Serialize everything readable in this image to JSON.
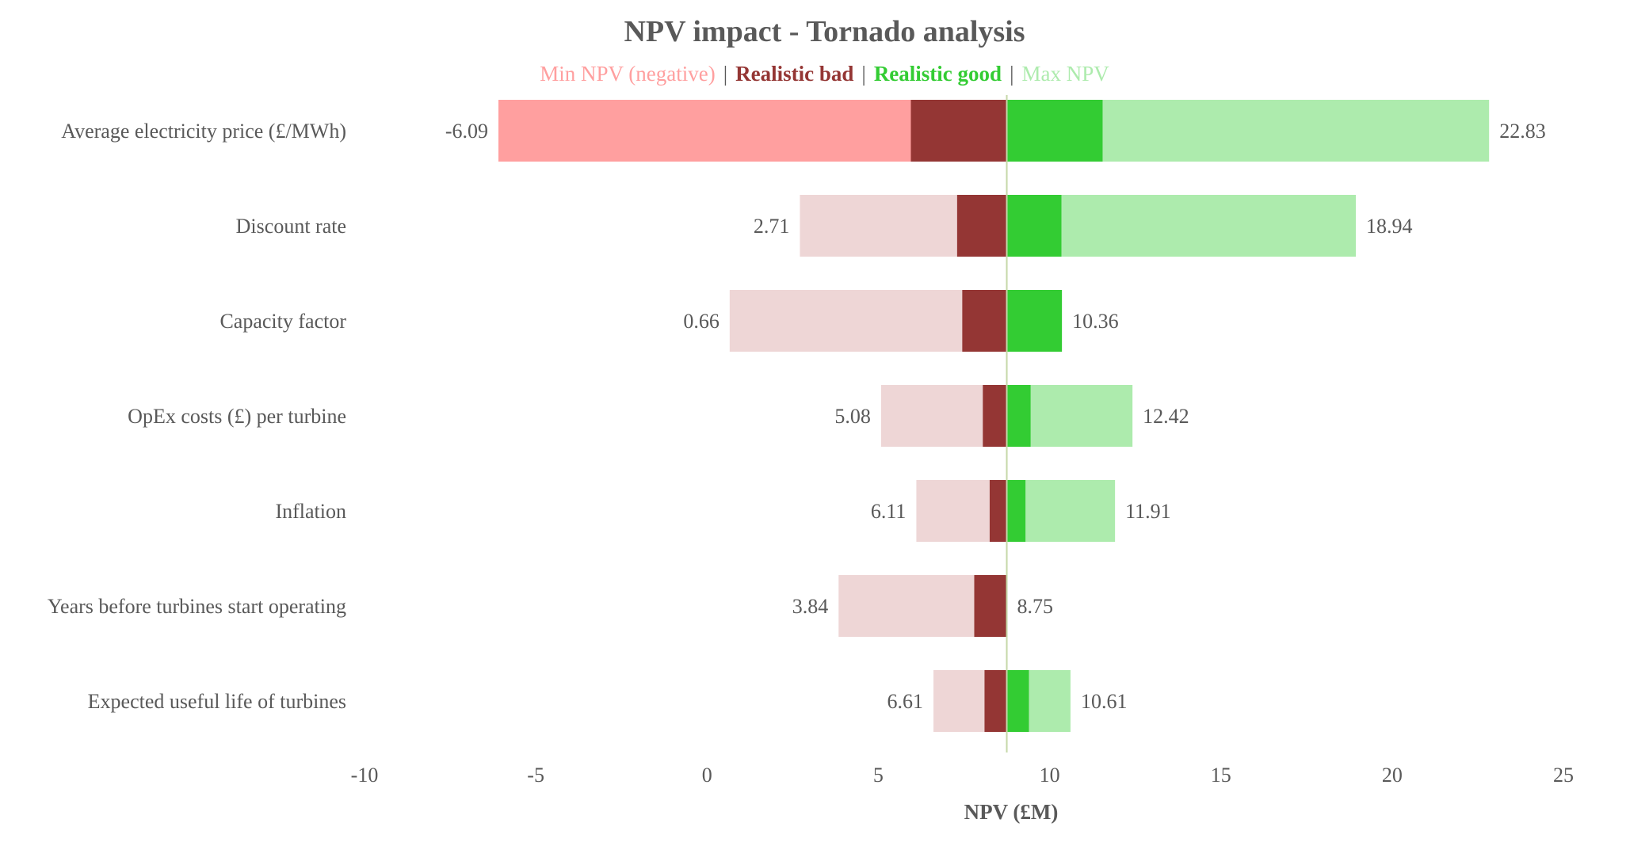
{
  "chart_data": {
    "type": "bar",
    "subtype": "tornado",
    "title": "NPV impact - Tornado analysis",
    "xlabel": "NPV (£M)",
    "xlim": [
      -10,
      25
    ],
    "xticks": [
      -10,
      -5,
      0,
      5,
      10,
      15,
      20,
      25
    ],
    "base": 8.75,
    "legend": {
      "position": "top",
      "separator": "|",
      "entries": [
        {
          "name": "Min NPV (negative)",
          "color": "#FF9F9F",
          "bold": false
        },
        {
          "name": "Realistic bad",
          "color": "#943634",
          "bold": true
        },
        {
          "name": "Realistic good",
          "color": "#33CC33",
          "bold": true
        },
        {
          "name": "Max NPV",
          "color": "#ADEBAD",
          "bold": false
        }
      ]
    },
    "colors": {
      "min_negative": "#FF9F9F",
      "min": "#EED6D6",
      "realistic_bad": "#943634",
      "realistic_good": "#33CC33",
      "max": "#ADEBAD",
      "base_line": "#C5D8A8"
    },
    "categories": [
      "Average electricity price  (£/MWh)",
      "Discount rate",
      "Capacity factor",
      "OpEx costs (£) per turbine",
      "Inflation",
      "Years before turbines start operating",
      "Expected useful life of turbines"
    ],
    "min_npv": [
      -6.09,
      2.71,
      0.66,
      5.08,
      6.11,
      3.84,
      6.61
    ],
    "realistic_bad": [
      5.95,
      7.3,
      7.45,
      8.05,
      8.25,
      7.8,
      8.1
    ],
    "realistic_good": [
      11.55,
      10.35,
      10.36,
      9.45,
      9.3,
      8.75,
      9.4
    ],
    "max_npv": [
      22.83,
      18.94,
      10.36,
      12.42,
      11.91,
      8.75,
      10.61
    ],
    "min_labels": [
      "-6.09",
      "2.71",
      "0.66",
      "5.08",
      "6.11",
      "3.84",
      "6.61"
    ],
    "max_labels": [
      "22.83",
      "18.94",
      "10.36",
      "12.42",
      "11.91",
      "8.75",
      "10.61"
    ],
    "grid": false
  }
}
